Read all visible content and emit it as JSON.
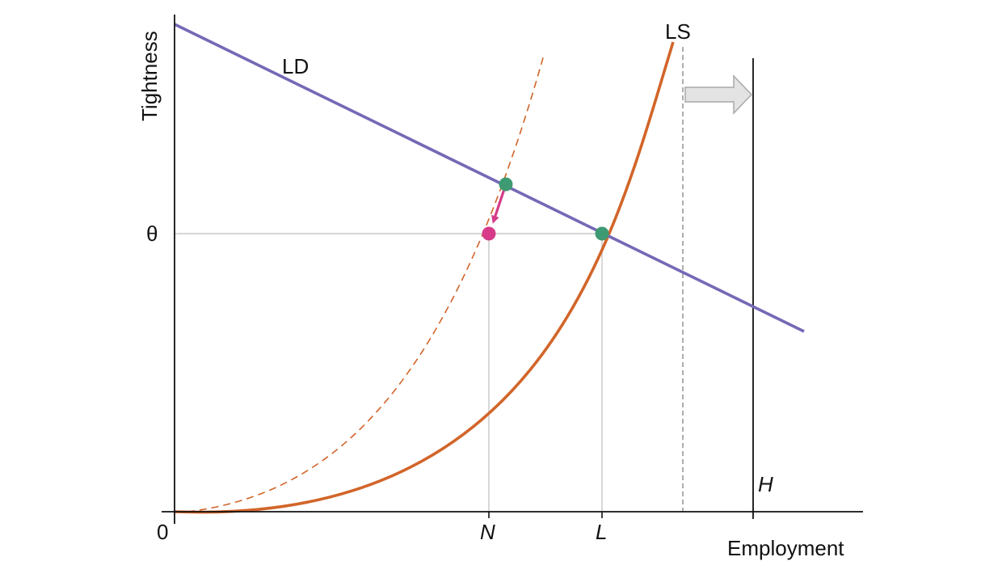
{
  "labels": {
    "y_axis": "Tightness",
    "x_axis": "Employment",
    "origin": "0",
    "theta": "θ",
    "ld": "LD",
    "ls": "LS",
    "n": "N",
    "l": "L",
    "h": "H"
  },
  "colors": {
    "ld_line": "#7469b6",
    "ls_curve": "#d2652a",
    "equilibrium_dot": "#3e9a72",
    "shifted_dot": "#d63a88",
    "shift_arrow": "#d63a88",
    "guide_line": "#bdbdbd",
    "axis": "#111111",
    "block_arrow_fill": "#e3e3e3",
    "block_arrow_stroke": "#a8a8a8"
  },
  "icons": {
    "shift_arrow": "right-block-arrow-icon",
    "move_arrow": "down-left-arrow-icon"
  }
}
